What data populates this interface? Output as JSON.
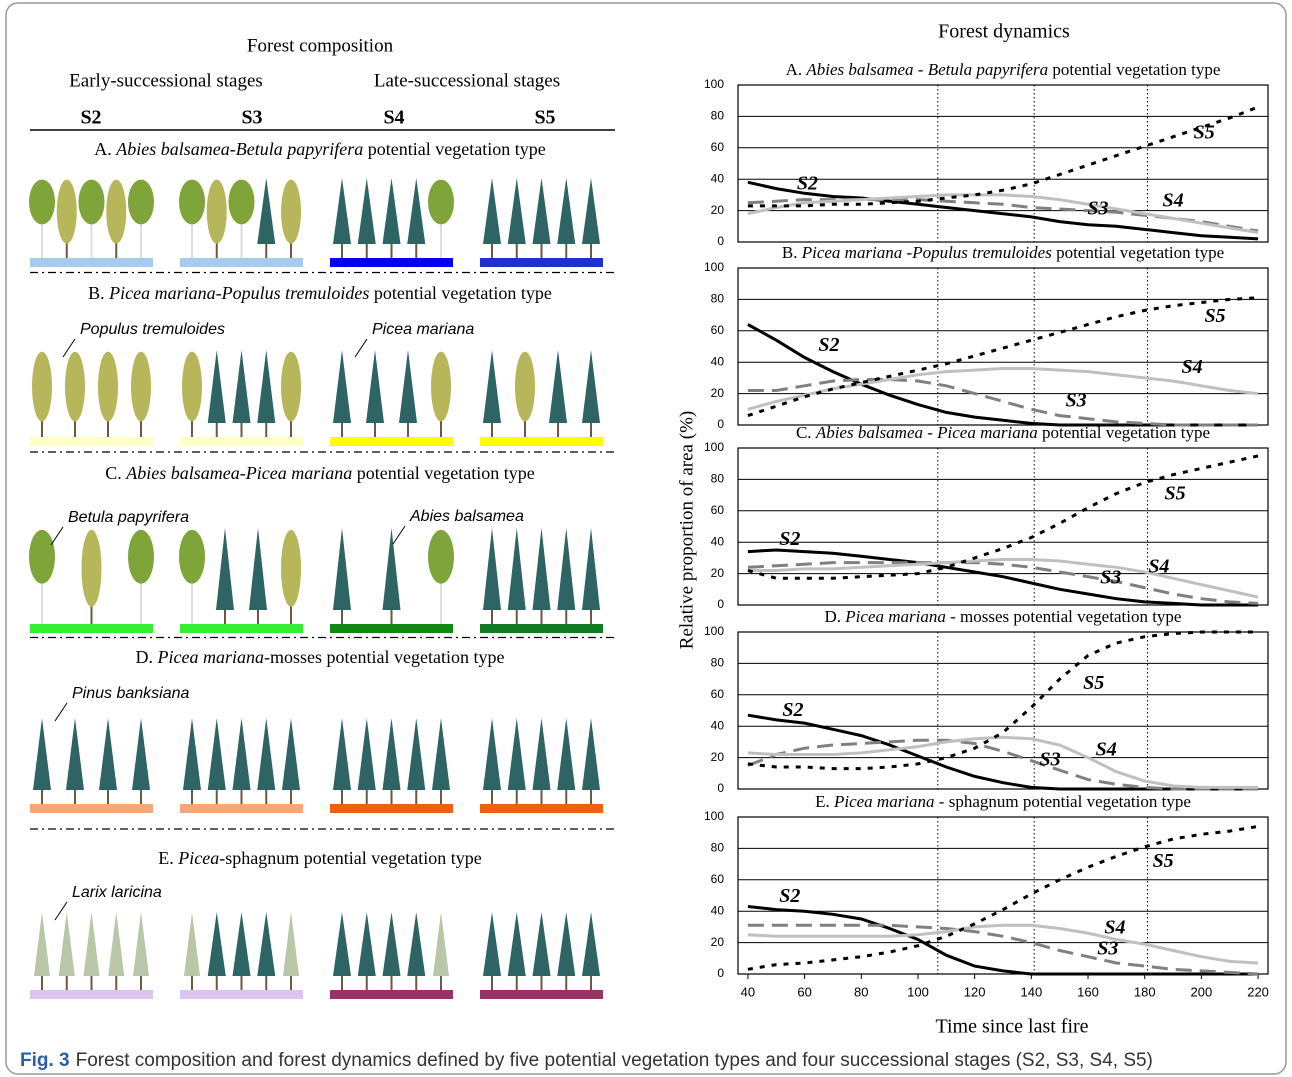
{
  "composition": {
    "title": "Forest composition",
    "groups": [
      "Early-successional stages",
      "Late-successional stages"
    ],
    "stages": [
      "S2",
      "S3",
      "S4",
      "S5"
    ],
    "types": [
      {
        "title": [
          "A. ",
          "Abies balsamea-Betula papyrifera",
          " potential vegetation type"
        ],
        "species": [],
        "ground_colors": [
          "#a6cbf0",
          "#a6cbf0",
          "#0000ee",
          "#1a33cc"
        ]
      },
      {
        "title": [
          "B. ",
          "Picea mariana-Populus tremuloides",
          " potential vegetation type"
        ],
        "species": [
          "Populus tremuloides",
          "Picea mariana"
        ],
        "ground_colors": [
          "#ffffc8",
          "#ffffc8",
          "#ffff00",
          "#ffff00"
        ]
      },
      {
        "title": [
          "C. ",
          "Abies balsamea-Picea mariana",
          " potential vegetation type"
        ],
        "species": [
          "Betula papyrifera",
          "Abies balsamea"
        ],
        "ground_colors": [
          "#33ee33",
          "#33ee33",
          "#118811",
          "#117a22"
        ]
      },
      {
        "title": [
          "D. ",
          "Picea mariana",
          "-mosses potential vegetation type"
        ],
        "species": [
          "Pinus banksiana"
        ],
        "ground_colors": [
          "#f3a77a",
          "#f3a77a",
          "#f06010",
          "#f06010"
        ]
      },
      {
        "title": [
          "E. ",
          "Picea",
          "-sphagnum potential vegetation type"
        ],
        "species": [
          "Larix laricina"
        ],
        "ground_colors": [
          "#dcc4ef",
          "#dcc4ef",
          "#993366",
          "#993366"
        ]
      }
    ]
  },
  "dynamics": {
    "title": "Forest dynamics",
    "ylabel": "Relative proportion of area (%)",
    "xlabel": "Time since last fire"
  },
  "chart_data": [
    {
      "type": "line",
      "title": [
        "A. ",
        "Abies balsamea - Betula papyrifera",
        " potential vegetation type"
      ],
      "x": [
        40,
        50,
        60,
        70,
        80,
        90,
        100,
        110,
        120,
        130,
        140,
        150,
        160,
        170,
        180,
        190,
        200,
        210,
        220
      ],
      "xlim": [
        36.5,
        223.5
      ],
      "ylim": [
        0,
        100
      ],
      "yticks": [
        0,
        20,
        40,
        60,
        80,
        100
      ],
      "grid": true,
      "vlines": [
        107,
        141,
        181
      ],
      "series": [
        {
          "name": "S2",
          "color": "#000000",
          "line_style": "solid",
          "values": [
            38,
            34,
            31,
            29,
            28,
            26,
            24,
            22,
            20,
            18,
            16,
            13,
            11,
            10,
            8,
            6,
            4,
            3,
            2
          ]
        },
        {
          "name": "S3",
          "color": "#808080",
          "line_style": "dashed",
          "values": [
            25,
            26,
            27,
            27,
            27,
            27,
            27,
            26,
            25,
            24,
            22,
            21,
            20,
            19,
            17,
            15,
            13,
            10,
            7
          ]
        },
        {
          "name": "S4",
          "color": "#c0c0c0",
          "line_style": "solid",
          "values": [
            18,
            22,
            25,
            26,
            27,
            28,
            29,
            30,
            30,
            30,
            29,
            27,
            24,
            21,
            18,
            15,
            12,
            9,
            6
          ]
        },
        {
          "name": "S5",
          "color": "#000000",
          "line_style": "dotted",
          "values": [
            23,
            23,
            23,
            24,
            24,
            25,
            26,
            28,
            30,
            33,
            37,
            43,
            49,
            55,
            61,
            67,
            73,
            79,
            86
          ]
        }
      ]
    },
    {
      "type": "line",
      "title": [
        "B. ",
        "Picea mariana -Populus tremuloides",
        " potential vegetation type"
      ],
      "x": [
        40,
        50,
        60,
        70,
        80,
        90,
        100,
        110,
        120,
        130,
        140,
        150,
        160,
        170,
        180,
        190,
        200,
        210,
        220
      ],
      "xlim": [
        36.5,
        223.5
      ],
      "ylim": [
        0,
        100
      ],
      "yticks": [
        0,
        20,
        40,
        60,
        80,
        100
      ],
      "grid": true,
      "vlines": [
        107,
        141,
        181
      ],
      "series": [
        {
          "name": "S2",
          "color": "#000000",
          "line_style": "solid",
          "values": [
            64,
            54,
            43,
            34,
            26,
            19,
            13,
            8,
            5,
            3,
            1,
            0,
            0,
            0,
            0,
            0,
            0,
            0,
            0
          ]
        },
        {
          "name": "S3",
          "color": "#808080",
          "line_style": "dashed",
          "values": [
            22,
            22,
            25,
            28,
            29,
            29,
            28,
            25,
            20,
            15,
            10,
            6,
            4,
            2,
            1,
            0,
            0,
            0,
            0
          ]
        },
        {
          "name": "S4",
          "color": "#c0c0c0",
          "line_style": "solid",
          "values": [
            10,
            15,
            19,
            23,
            26,
            29,
            32,
            34,
            35,
            36,
            36,
            35,
            34,
            32,
            30,
            28,
            25,
            22,
            20
          ]
        },
        {
          "name": "S5",
          "color": "#000000",
          "line_style": "dotted",
          "values": [
            6,
            12,
            18,
            23,
            27,
            31,
            35,
            39,
            44,
            49,
            54,
            59,
            64,
            69,
            73,
            76,
            78,
            80,
            81
          ]
        }
      ]
    },
    {
      "type": "line",
      "title": [
        "C. ",
        "Abies balsamea - Picea mariana",
        " potential vegetation type"
      ],
      "x": [
        40,
        50,
        60,
        70,
        80,
        90,
        100,
        110,
        120,
        130,
        140,
        150,
        160,
        170,
        180,
        190,
        200,
        210,
        220
      ],
      "xlim": [
        36.5,
        223.5
      ],
      "ylim": [
        0,
        100
      ],
      "yticks": [
        0,
        20,
        40,
        60,
        80,
        100
      ],
      "grid": true,
      "vlines": [
        107,
        141,
        181
      ],
      "series": [
        {
          "name": "S2",
          "color": "#000000",
          "line_style": "solid",
          "values": [
            34,
            35,
            34,
            33,
            31,
            29,
            27,
            24,
            21,
            18,
            14,
            10,
            7,
            4,
            2,
            1,
            0,
            0,
            0
          ]
        },
        {
          "name": "S3",
          "color": "#808080",
          "line_style": "dashed",
          "values": [
            24,
            25,
            26,
            27,
            27,
            27,
            27,
            27,
            27,
            26,
            24,
            21,
            18,
            15,
            11,
            7,
            4,
            2,
            1
          ]
        },
        {
          "name": "S4",
          "color": "#c0c0c0",
          "line_style": "solid",
          "values": [
            22,
            22,
            23,
            23,
            24,
            25,
            26,
            27,
            28,
            29,
            29,
            28,
            26,
            24,
            21,
            17,
            13,
            9,
            5
          ]
        },
        {
          "name": "S5",
          "color": "#000000",
          "line_style": "dotted",
          "values": [
            22,
            17,
            17,
            17,
            18,
            19,
            20,
            24,
            30,
            36,
            43,
            52,
            62,
            71,
            78,
            83,
            87,
            91,
            95
          ]
        }
      ]
    },
    {
      "type": "line",
      "title": [
        "D. ",
        "Picea mariana",
        " - mosses potential vegetation type"
      ],
      "x": [
        40,
        50,
        60,
        70,
        80,
        90,
        100,
        110,
        120,
        130,
        140,
        150,
        160,
        170,
        180,
        190,
        200,
        210,
        220
      ],
      "xlim": [
        36.5,
        223.5
      ],
      "ylim": [
        0,
        100
      ],
      "yticks": [
        0,
        20,
        40,
        60,
        80,
        100
      ],
      "grid": true,
      "vlines": [
        107,
        141,
        181
      ],
      "series": [
        {
          "name": "S2",
          "color": "#000000",
          "line_style": "solid",
          "values": [
            47,
            44,
            42,
            38,
            34,
            28,
            21,
            14,
            8,
            4,
            1,
            0,
            0,
            0,
            0,
            0,
            0,
            0,
            0
          ]
        },
        {
          "name": "S3",
          "color": "#808080",
          "line_style": "dashed",
          "values": [
            15,
            22,
            26,
            28,
            29,
            30,
            31,
            31,
            29,
            24,
            18,
            12,
            6,
            3,
            1,
            0,
            0,
            0,
            0
          ]
        },
        {
          "name": "S4",
          "color": "#c0c0c0",
          "line_style": "solid",
          "values": [
            23,
            22,
            22,
            22,
            23,
            25,
            27,
            30,
            32,
            33,
            32,
            28,
            20,
            11,
            5,
            2,
            1,
            1,
            1
          ]
        },
        {
          "name": "S5",
          "color": "#000000",
          "line_style": "dotted",
          "values": [
            16,
            14,
            14,
            13,
            13,
            14,
            16,
            20,
            26,
            36,
            52,
            70,
            85,
            93,
            97,
            99,
            100,
            100,
            100
          ]
        }
      ]
    },
    {
      "type": "line",
      "title": [
        "E. ",
        "Picea mariana",
        " - sphagnum potential vegetation type"
      ],
      "x": [
        40,
        50,
        60,
        70,
        80,
        90,
        100,
        110,
        120,
        130,
        140,
        150,
        160,
        170,
        180,
        190,
        200,
        210,
        220
      ],
      "xlim": [
        36.5,
        223.5
      ],
      "ylim": [
        0,
        100
      ],
      "yticks": [
        0,
        20,
        40,
        60,
        80,
        100
      ],
      "grid": true,
      "vlines": [
        107,
        141,
        181
      ],
      "xticks": [
        40,
        60,
        80,
        100,
        120,
        140,
        160,
        180,
        200,
        220
      ],
      "series": [
        {
          "name": "S2",
          "color": "#000000",
          "line_style": "solid",
          "values": [
            43,
            41,
            40,
            38,
            35,
            29,
            22,
            12,
            5,
            2,
            0,
            0,
            0,
            0,
            0,
            0,
            0,
            0,
            0
          ]
        },
        {
          "name": "S3",
          "color": "#808080",
          "line_style": "dashed",
          "values": [
            31,
            31,
            31,
            31,
            31,
            31,
            30,
            29,
            27,
            24,
            20,
            15,
            11,
            7,
            5,
            3,
            2,
            1,
            0
          ]
        },
        {
          "name": "S4",
          "color": "#c0c0c0",
          "line_style": "solid",
          "values": [
            25,
            24,
            24,
            24,
            24,
            24,
            25,
            27,
            30,
            31,
            31,
            29,
            26,
            22,
            19,
            15,
            11,
            8,
            7
          ]
        },
        {
          "name": "S5",
          "color": "#000000",
          "line_style": "dotted",
          "values": [
            3,
            6,
            7,
            9,
            11,
            14,
            18,
            24,
            32,
            41,
            51,
            60,
            68,
            75,
            81,
            86,
            89,
            91,
            94
          ]
        }
      ]
    }
  ],
  "caption": {
    "label": "Fig. 3",
    "text": "Forest composition and forest dynamics defined by five potential vegetation types and four successional stages (S2, S3, S4, S5)"
  }
}
